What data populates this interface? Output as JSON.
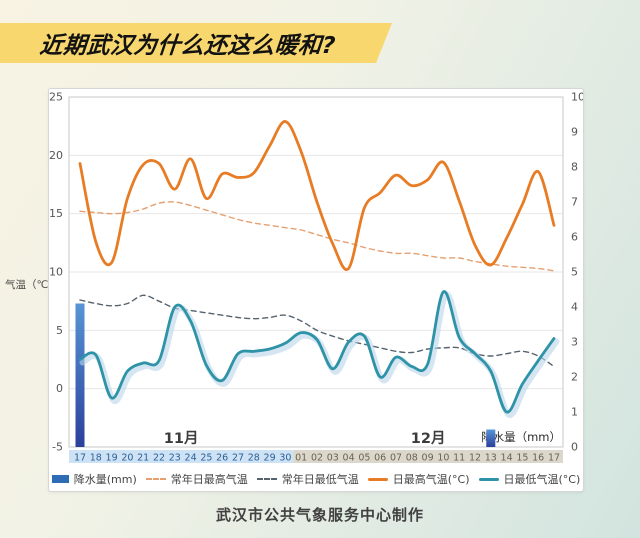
{
  "banner": {
    "title": "近期武汉为什么还这么暖和?",
    "bg_color": "#f8d76e"
  },
  "caption": "武汉市公共气象服务中心制作",
  "chart_data": {
    "type": "line",
    "title": "近期武汉为什么还这么暖和?",
    "grid": true,
    "legend_position": "bottom",
    "x_categories": [
      "17",
      "18",
      "19",
      "20",
      "21",
      "22",
      "23",
      "24",
      "25",
      "26",
      "27",
      "28",
      "29",
      "30",
      "01",
      "02",
      "03",
      "04",
      "05",
      "06",
      "07",
      "08",
      "09",
      "10",
      "11",
      "12",
      "13",
      "14",
      "15",
      "16",
      "17"
    ],
    "x_axis_bands": [
      {
        "label": "11月",
        "from": 0,
        "to": 13,
        "bg": "#cde2f4",
        "text_color": "#2d6097"
      },
      {
        "label": "12月",
        "from": 14,
        "to": 30,
        "bg": "#dcd7cb",
        "text_color": "#6b6254"
      }
    ],
    "y_axis_left": {
      "label": "气温（℃）",
      "ticks": [
        25,
        20,
        15,
        10,
        5,
        0,
        -5
      ],
      "range": [
        -5,
        25
      ]
    },
    "y_axis_right": {
      "label": "降水量（mm）",
      "ticks": [
        10,
        9,
        8,
        7,
        6,
        5,
        4,
        3,
        2,
        1,
        0
      ],
      "range": [
        0,
        10
      ]
    },
    "series": [
      {
        "name": "降水量(mm)",
        "type": "bar",
        "axis": "right",
        "color": "#2e6cb5",
        "gradient": [
          "#5795d5",
          "#2c3f9d"
        ],
        "values": [
          4.1,
          0,
          0,
          0,
          0,
          0,
          0,
          0,
          0,
          0,
          0,
          0,
          0,
          0,
          0,
          0,
          0,
          0,
          0,
          0,
          0,
          0,
          0,
          0,
          0,
          0,
          0.5,
          0,
          0,
          0,
          0
        ]
      },
      {
        "name": "常年日最高气温",
        "type": "line-dashed",
        "axis": "left",
        "color": "#e5a071",
        "values": [
          15.2,
          15.1,
          15.0,
          15.1,
          15.4,
          15.9,
          16.0,
          15.7,
          15.3,
          14.9,
          14.5,
          14.2,
          14.0,
          13.8,
          13.6,
          13.2,
          12.8,
          12.5,
          12.1,
          11.8,
          11.6,
          11.6,
          11.4,
          11.2,
          11.2,
          10.9,
          10.7,
          10.5,
          10.4,
          10.3,
          10.1
        ]
      },
      {
        "name": "常年日最低气温",
        "type": "line-dashed",
        "axis": "left",
        "color": "#55636f",
        "values": [
          7.6,
          7.3,
          7.1,
          7.3,
          8.0,
          7.5,
          6.9,
          6.7,
          6.5,
          6.3,
          6.1,
          6.0,
          6.1,
          6.3,
          5.8,
          5.0,
          4.5,
          4.1,
          3.8,
          3.5,
          3.2,
          3.1,
          3.4,
          3.5,
          3.5,
          3.0,
          2.8,
          3.0,
          3.2,
          2.8,
          1.9
        ]
      },
      {
        "name": "日最高气温(°C)",
        "type": "line",
        "axis": "left",
        "color": "#e87c25",
        "values": [
          19.3,
          12.6,
          10.8,
          16.3,
          19.2,
          19.3,
          17.1,
          19.7,
          16.3,
          18.4,
          18.1,
          18.5,
          20.8,
          22.9,
          20.3,
          16.0,
          12.4,
          10.3,
          15.5,
          16.8,
          18.3,
          17.4,
          17.9,
          19.4,
          16.1,
          12.3,
          10.6,
          12.9,
          15.8,
          18.6,
          14.0
        ]
      },
      {
        "name": "日最低气温(°C)",
        "type": "line",
        "axis": "left",
        "color": "#2f93a8",
        "halo": "#b9d6ea",
        "values": [
          2.5,
          2.9,
          -0.8,
          1.5,
          2.2,
          2.4,
          7.0,
          5.8,
          2.0,
          0.7,
          3.0,
          3.2,
          3.4,
          3.9,
          4.8,
          4.2,
          1.7,
          4.0,
          4.5,
          1.0,
          2.7,
          1.9,
          2.1,
          8.3,
          4.4,
          3.0,
          1.5,
          -2.0,
          0.4,
          2.4,
          4.3
        ]
      }
    ]
  }
}
